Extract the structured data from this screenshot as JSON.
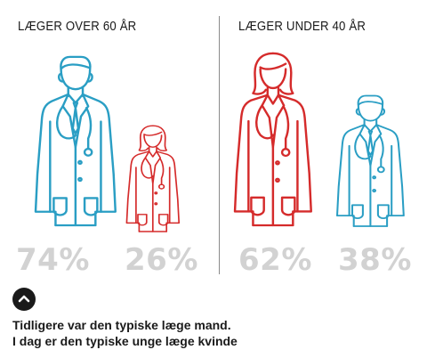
{
  "panels": {
    "left": {
      "title": "LÆGER OVER 60 ÅR",
      "male": {
        "percent": "74%",
        "color": "#2a9ec4",
        "icon": "male-doctor-icon"
      },
      "female": {
        "percent": "26%",
        "color": "#d52b2b",
        "icon": "female-doctor-icon"
      }
    },
    "right": {
      "title": "LÆGER UNDER 40 ÅR",
      "female": {
        "percent": "62%",
        "color": "#d52b2b",
        "icon": "female-doctor-icon"
      },
      "male": {
        "percent": "38%",
        "color": "#2a9ec4",
        "icon": "male-doctor-icon"
      }
    }
  },
  "toggle": {
    "icon": "chevron-up-icon"
  },
  "caption": {
    "line1": "Tidligere var den typiske læge mand.",
    "line2": "I dag er den typiske unge læge kvinde"
  }
}
